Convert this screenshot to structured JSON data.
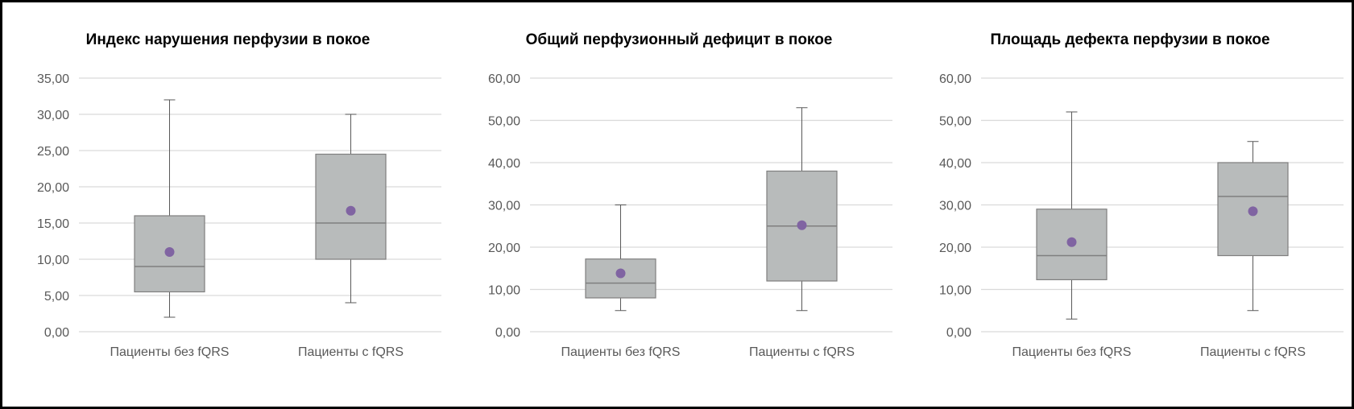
{
  "chart_data": [
    {
      "type": "boxplot",
      "title": "Индекс нарушения перфузии в покое",
      "categories": [
        "Пациенты без fQRS",
        "Пациенты с fQRS"
      ],
      "ylim": [
        0,
        35
      ],
      "yticks": [
        0,
        5,
        10,
        15,
        20,
        25,
        30,
        35
      ],
      "ytick_labels": [
        "0,00",
        "5,00",
        "10,00",
        "15,00",
        "20,00",
        "25,00",
        "30,00",
        "35,00"
      ],
      "grid": true,
      "boxes": [
        {
          "min": 2,
          "q1": 5.5,
          "median": 9,
          "q3": 16,
          "max": 32,
          "mean": 11
        },
        {
          "min": 4,
          "q1": 10,
          "median": 15,
          "q3": 24.5,
          "max": 30,
          "mean": 16.7
        }
      ]
    },
    {
      "type": "boxplot",
      "title": "Общий перфузионный дефицит в покое",
      "categories": [
        "Пациенты без fQRS",
        "Пациенты с fQRS"
      ],
      "ylim": [
        0,
        60
      ],
      "yticks": [
        0,
        10,
        20,
        30,
        40,
        50,
        60
      ],
      "ytick_labels": [
        "0,00",
        "10,00",
        "20,00",
        "30,00",
        "40,00",
        "50,00",
        "60,00"
      ],
      "grid": true,
      "boxes": [
        {
          "min": 5,
          "q1": 8,
          "median": 11.5,
          "q3": 17.2,
          "max": 30,
          "mean": 13.8
        },
        {
          "min": 5,
          "q1": 12,
          "median": 25,
          "q3": 38,
          "max": 53,
          "mean": 25.2
        }
      ]
    },
    {
      "type": "boxplot",
      "title": "Площадь дефекта перфузии в покое",
      "categories": [
        "Пациенты без fQRS",
        "Пациенты с fQRS"
      ],
      "ylim": [
        0,
        60
      ],
      "yticks": [
        0,
        10,
        20,
        30,
        40,
        50,
        60
      ],
      "ytick_labels": [
        "0,00",
        "10,00",
        "20,00",
        "30,00",
        "40,00",
        "50,00",
        "60,00"
      ],
      "grid": true,
      "boxes": [
        {
          "min": 3,
          "q1": 12.3,
          "median": 18,
          "q3": 29,
          "max": 52,
          "mean": 21.2
        },
        {
          "min": 5,
          "q1": 18,
          "median": 32,
          "q3": 40,
          "max": 45,
          "mean": 28.5
        }
      ]
    }
  ],
  "colors": {
    "box": "#b8bbbb",
    "box_edge": "#7f7f7f",
    "mean": "#8064a2",
    "grid": "#d9d9d9",
    "tick_text": "#595959"
  }
}
